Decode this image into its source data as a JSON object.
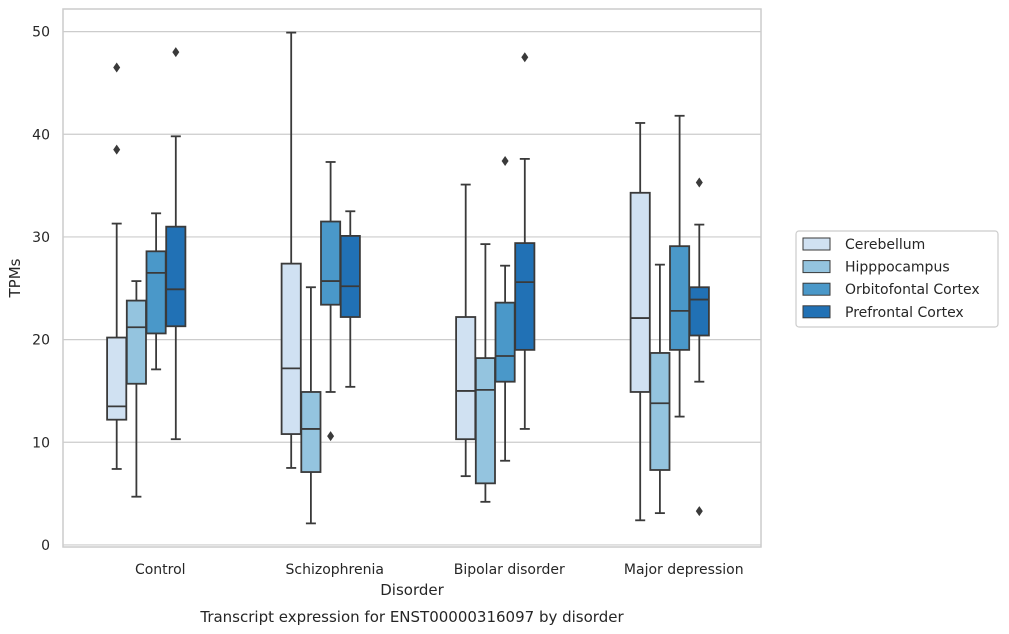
{
  "chart_data": {
    "type": "box",
    "caption": "Transcript expression for ENST00000316097 by disorder",
    "xlabel": "Disorder",
    "ylabel": "TPMs",
    "ylim": [
      -0.2,
      52.2
    ],
    "yticks": [
      0,
      10,
      20,
      30,
      40,
      50
    ],
    "grid": "horizontal",
    "legend_position": "right",
    "categories": [
      "Control",
      "Schizophrenia",
      "Bipolar disorder",
      "Major depression"
    ],
    "series": [
      {
        "name": "Cerebellum",
        "color": "#d0e1f2",
        "boxes": [
          {
            "whisker_low": 7.4,
            "q1": 12.2,
            "median": 13.5,
            "q3": 20.2,
            "whisker_high": 31.3,
            "outliers": [
              38.5,
              46.5
            ]
          },
          {
            "whisker_low": 7.5,
            "q1": 10.8,
            "median": 17.2,
            "q3": 27.4,
            "whisker_high": 49.9,
            "outliers": []
          },
          {
            "whisker_low": 6.7,
            "q1": 10.3,
            "median": 15.0,
            "q3": 22.2,
            "whisker_high": 35.1,
            "outliers": []
          },
          {
            "whisker_low": 2.4,
            "q1": 14.9,
            "median": 22.1,
            "q3": 34.3,
            "whisker_high": 41.1,
            "outliers": []
          }
        ]
      },
      {
        "name": "Hipppocampus",
        "color": "#94c4df",
        "boxes": [
          {
            "whisker_low": 4.7,
            "q1": 15.7,
            "median": 21.2,
            "q3": 23.8,
            "whisker_high": 25.7,
            "outliers": []
          },
          {
            "whisker_low": 2.1,
            "q1": 7.1,
            "median": 11.3,
            "q3": 14.9,
            "whisker_high": 25.1,
            "outliers": []
          },
          {
            "whisker_low": 4.2,
            "q1": 6.0,
            "median": 15.1,
            "q3": 18.2,
            "whisker_high": 29.3,
            "outliers": []
          },
          {
            "whisker_low": 3.1,
            "q1": 7.3,
            "median": 13.8,
            "q3": 18.7,
            "whisker_high": 27.3,
            "outliers": []
          }
        ]
      },
      {
        "name": "Orbitofontal Cortex",
        "color": "#4a98c9",
        "boxes": [
          {
            "whisker_low": 17.1,
            "q1": 20.6,
            "median": 26.5,
            "q3": 28.6,
            "whisker_high": 32.3,
            "outliers": []
          },
          {
            "whisker_low": 14.9,
            "q1": 23.4,
            "median": 25.7,
            "q3": 31.5,
            "whisker_high": 37.3,
            "outliers": [
              10.6
            ]
          },
          {
            "whisker_low": 8.2,
            "q1": 15.9,
            "median": 18.4,
            "q3": 23.6,
            "whisker_high": 27.2,
            "outliers": [
              37.4
            ]
          },
          {
            "whisker_low": 12.5,
            "q1": 19.0,
            "median": 22.8,
            "q3": 29.1,
            "whisker_high": 41.8,
            "outliers": []
          }
        ]
      },
      {
        "name": "Prefrontal Cortex",
        "color": "#2171b5",
        "boxes": [
          {
            "whisker_low": 10.3,
            "q1": 21.3,
            "median": 24.9,
            "q3": 31.0,
            "whisker_high": 39.8,
            "outliers": [
              48.0
            ]
          },
          {
            "whisker_low": 15.4,
            "q1": 22.2,
            "median": 25.2,
            "q3": 30.1,
            "whisker_high": 32.5,
            "outliers": []
          },
          {
            "whisker_low": 11.3,
            "q1": 19.0,
            "median": 25.6,
            "q3": 29.4,
            "whisker_high": 37.6,
            "outliers": [
              47.5
            ]
          },
          {
            "whisker_low": 15.9,
            "q1": 20.4,
            "median": 23.9,
            "q3": 25.1,
            "whisker_high": 31.2,
            "outliers": [
              3.3,
              35.3
            ]
          }
        ]
      }
    ]
  }
}
